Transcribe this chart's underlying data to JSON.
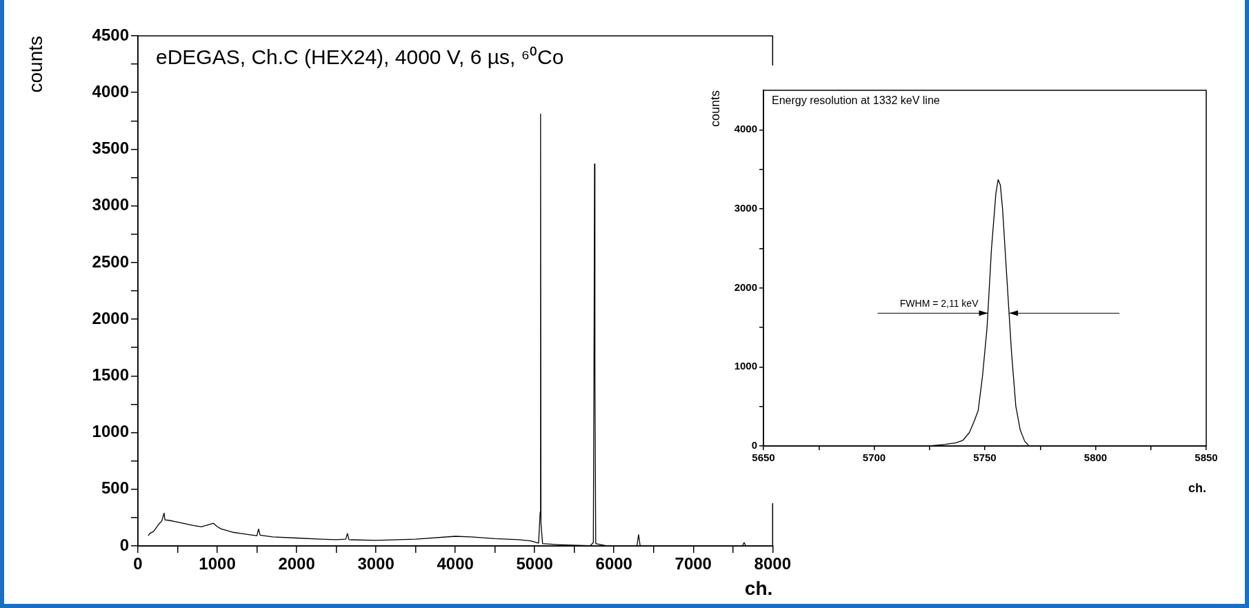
{
  "chart_data": [
    {
      "type": "line",
      "title": "eDEGAS, Ch.C (HEX24), 4000 V, 6 µs, ⁶⁰Co",
      "xlabel": "ch.",
      "ylabel": "counts",
      "x": [
        130,
        150,
        200,
        260,
        300,
        330,
        340,
        400,
        500,
        600,
        700,
        800,
        900,
        950,
        1000,
        1050,
        1100,
        1200,
        1300,
        1400,
        1500,
        1520,
        1540,
        1700,
        2000,
        2300,
        2500,
        2620,
        2640,
        2660,
        3000,
        3500,
        4000,
        4200,
        4500,
        4800,
        4950,
        5050,
        5070,
        5075,
        5080,
        5100,
        5300,
        5500,
        5700,
        5740,
        5750,
        5755,
        5760,
        5770,
        5900,
        6290,
        6310,
        6330,
        7000,
        7620,
        7640,
        7660,
        7700
      ],
      "series": [
        {
          "color": "#000000",
          "values": [
            90,
            110,
            130,
            190,
            220,
            290,
            230,
            225,
            210,
            195,
            180,
            170,
            190,
            200,
            170,
            150,
            140,
            120,
            110,
            100,
            90,
            150,
            95,
            80,
            70,
            60,
            55,
            60,
            110,
            55,
            50,
            60,
            85,
            80,
            65,
            55,
            45,
            25,
            300,
            3810,
            200,
            20,
            12,
            6,
            2,
            30,
            2000,
            3370,
            1500,
            20,
            2,
            2,
            100,
            2,
            2,
            2,
            30,
            2,
            2
          ]
        }
      ],
      "xlim": [
        0,
        8000
      ],
      "ylim": [
        0,
        4500
      ],
      "xticks": [
        0,
        {
          "value": 500,
          "label": null
        },
        1000,
        {
          "value": 1500,
          "label": null
        },
        2000,
        {
          "value": 2500,
          "label": null
        },
        3000,
        {
          "value": 3500,
          "label": null
        },
        4000,
        {
          "value": 4500,
          "label": null
        },
        5000,
        {
          "value": 5500,
          "label": null
        },
        6000,
        {
          "value": 6500,
          "label": null
        },
        7000,
        {
          "value": 7500,
          "label": null
        },
        8000
      ],
      "yticks": [
        0,
        {
          "value": 250,
          "label": null
        },
        500,
        {
          "value": 750,
          "label": null
        },
        1000,
        {
          "value": 1250,
          "label": null
        },
        1500,
        {
          "value": 1750,
          "label": null
        },
        2000,
        {
          "value": 2250,
          "label": null
        },
        2500,
        {
          "value": 2750,
          "label": null
        },
        3000,
        {
          "value": 3250,
          "label": null
        },
        3500,
        {
          "value": 3750,
          "label": null
        },
        4000,
        {
          "value": 4250,
          "label": null
        },
        4500
      ],
      "grid": false,
      "legend": false,
      "marker": "none",
      "line_style": "solid"
    },
    {
      "type": "line",
      "title": "Energy resolution at 1332 keV line",
      "xlabel": "ch.",
      "ylabel": "counts",
      "x": [
        5650,
        5670,
        5690,
        5710,
        5725,
        5732,
        5737,
        5740,
        5743,
        5745,
        5747,
        5749,
        5751,
        5753,
        5755,
        5756,
        5757,
        5758,
        5760,
        5762,
        5764,
        5766,
        5768,
        5770,
        5775,
        5790,
        5810,
        5830,
        5850
      ],
      "series": [
        {
          "color": "#000000",
          "values": [
            0,
            0,
            0,
            0,
            0,
            20,
            40,
            70,
            170,
            300,
            450,
            900,
            1500,
            2500,
            3200,
            3370,
            3300,
            3000,
            2100,
            1200,
            500,
            200,
            60,
            0,
            0,
            0,
            0,
            0,
            0
          ]
        }
      ],
      "xlim": [
        5650,
        5850
      ],
      "ylim": [
        0,
        4500
      ],
      "xticks": [
        5650,
        {
          "value": 5675,
          "label": null
        },
        5700,
        {
          "value": 5725,
          "label": null
        },
        5750,
        {
          "value": 5775,
          "label": null
        },
        5800,
        {
          "value": 5825,
          "label": null
        },
        5850
      ],
      "yticks": [
        0,
        {
          "value": 500,
          "label": null
        },
        1000,
        {
          "value": 1500,
          "label": null
        },
        2000,
        {
          "value": 2500,
          "label": null
        },
        3000,
        {
          "value": 3500,
          "label": null
        },
        4000
      ],
      "annotations": [
        {
          "text": "FWHM = 2,11 keV",
          "x": 5751.4,
          "y": 1680
        }
      ],
      "grid": false,
      "legend": false,
      "marker": "none",
      "line_style": "solid"
    }
  ]
}
